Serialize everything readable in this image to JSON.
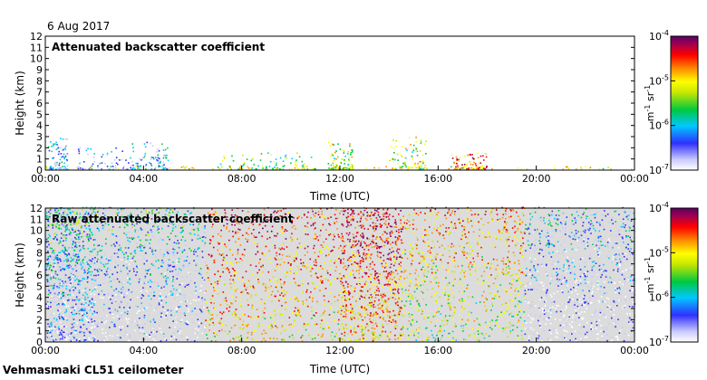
{
  "date_label": "6 Aug 2017",
  "instrument_label": "Vehmasmaki CL51 ceilometer",
  "colors": {
    "background_no_signal": "#dcdcdc",
    "colormap": [
      "#ffffff",
      "#c8c8ff",
      "#3030ff",
      "#00c8ff",
      "#00c840",
      "#c8e600",
      "#ffff00",
      "#ff8800",
      "#ff0000",
      "#a00050",
      "#5a0064"
    ]
  },
  "chart_data": [
    {
      "type": "heatmap",
      "title": "Attenuated backscatter coefficient",
      "xlabel": "Time (UTC)",
      "ylabel": "Height (km)",
      "xticks": [
        "00:00",
        "04:00",
        "08:00",
        "12:00",
        "16:00",
        "20:00",
        "00:00"
      ],
      "yticks": [
        "0",
        "1",
        "2",
        "3",
        "4",
        "5",
        "6",
        "7",
        "8",
        "9",
        "10",
        "11",
        "12"
      ],
      "xlim_hours": [
        0,
        24
      ],
      "ylim_km": [
        0,
        12
      ],
      "colorbar": {
        "scale": "log",
        "range": [
          1e-07,
          0.0001
        ],
        "ticks": [
          "10",
          "10",
          "10",
          "10"
        ],
        "tick_exponents": [
          "-7",
          "-6",
          "-5",
          "-4"
        ],
        "unit": "m",
        "unit_exp1": "-1",
        "unit2": "sr",
        "unit_exp2": "-1"
      },
      "features": [
        {
          "time_start_h": 0.0,
          "time_end_h": 24.0,
          "top_km": 0.3,
          "level": 0.55
        },
        {
          "time_start_h": 0.1,
          "time_end_h": 0.9,
          "top_km": 3.0,
          "level": 0.25
        },
        {
          "time_start_h": 1.3,
          "time_end_h": 3.5,
          "top_km": 2.0,
          "level": 0.15
        },
        {
          "time_start_h": 3.5,
          "time_end_h": 5.0,
          "top_km": 2.5,
          "level": 0.3
        },
        {
          "time_start_h": 7.0,
          "time_end_h": 11.0,
          "top_km": 1.5,
          "level": 0.45
        },
        {
          "time_start_h": 11.5,
          "time_end_h": 12.5,
          "top_km": 2.5,
          "level": 0.5
        },
        {
          "time_start_h": 14.0,
          "time_end_h": 15.5,
          "top_km": 3.0,
          "level": 0.5
        },
        {
          "time_start_h": 16.5,
          "time_end_h": 18.0,
          "top_km": 1.5,
          "level": 0.7
        }
      ]
    },
    {
      "type": "heatmap",
      "title": "Raw attenuated backscatter coefficient",
      "xlabel": "Time (UTC)",
      "ylabel": "Height (km)",
      "xticks": [
        "00:00",
        "04:00",
        "08:00",
        "12:00",
        "16:00",
        "20:00",
        "00:00"
      ],
      "yticks": [
        "0",
        "1",
        "2",
        "3",
        "4",
        "5",
        "6",
        "7",
        "8",
        "9",
        "10",
        "11",
        "12"
      ],
      "xlim_hours": [
        0,
        24
      ],
      "ylim_km": [
        0,
        12
      ],
      "colorbar": {
        "scale": "log",
        "range": [
          1e-07,
          0.0001
        ],
        "ticks": [
          "10",
          "10",
          "10",
          "10"
        ],
        "tick_exponents": [
          "-7",
          "-6",
          "-5",
          "-4"
        ],
        "unit": "m",
        "unit_exp1": "-1",
        "unit2": "sr",
        "unit_exp2": "-1"
      },
      "features": [
        {
          "time_start_h": 0.0,
          "time_end_h": 2.0,
          "top_km": 12.0,
          "level": 0.12
        },
        {
          "time_start_h": 2.0,
          "time_end_h": 6.5,
          "top_km": 12.0,
          "level": 0.1
        },
        {
          "time_start_h": 6.5,
          "time_end_h": 12.0,
          "top_km": 12.0,
          "level": 0.55
        },
        {
          "time_start_h": 12.0,
          "time_end_h": 14.5,
          "top_km": 12.0,
          "level": 0.6
        },
        {
          "time_start_h": 14.5,
          "time_end_h": 19.5,
          "top_km": 12.0,
          "level": 0.45
        },
        {
          "time_start_h": 19.5,
          "time_end_h": 24.0,
          "top_km": 12.0,
          "level": 0.05
        }
      ]
    }
  ]
}
